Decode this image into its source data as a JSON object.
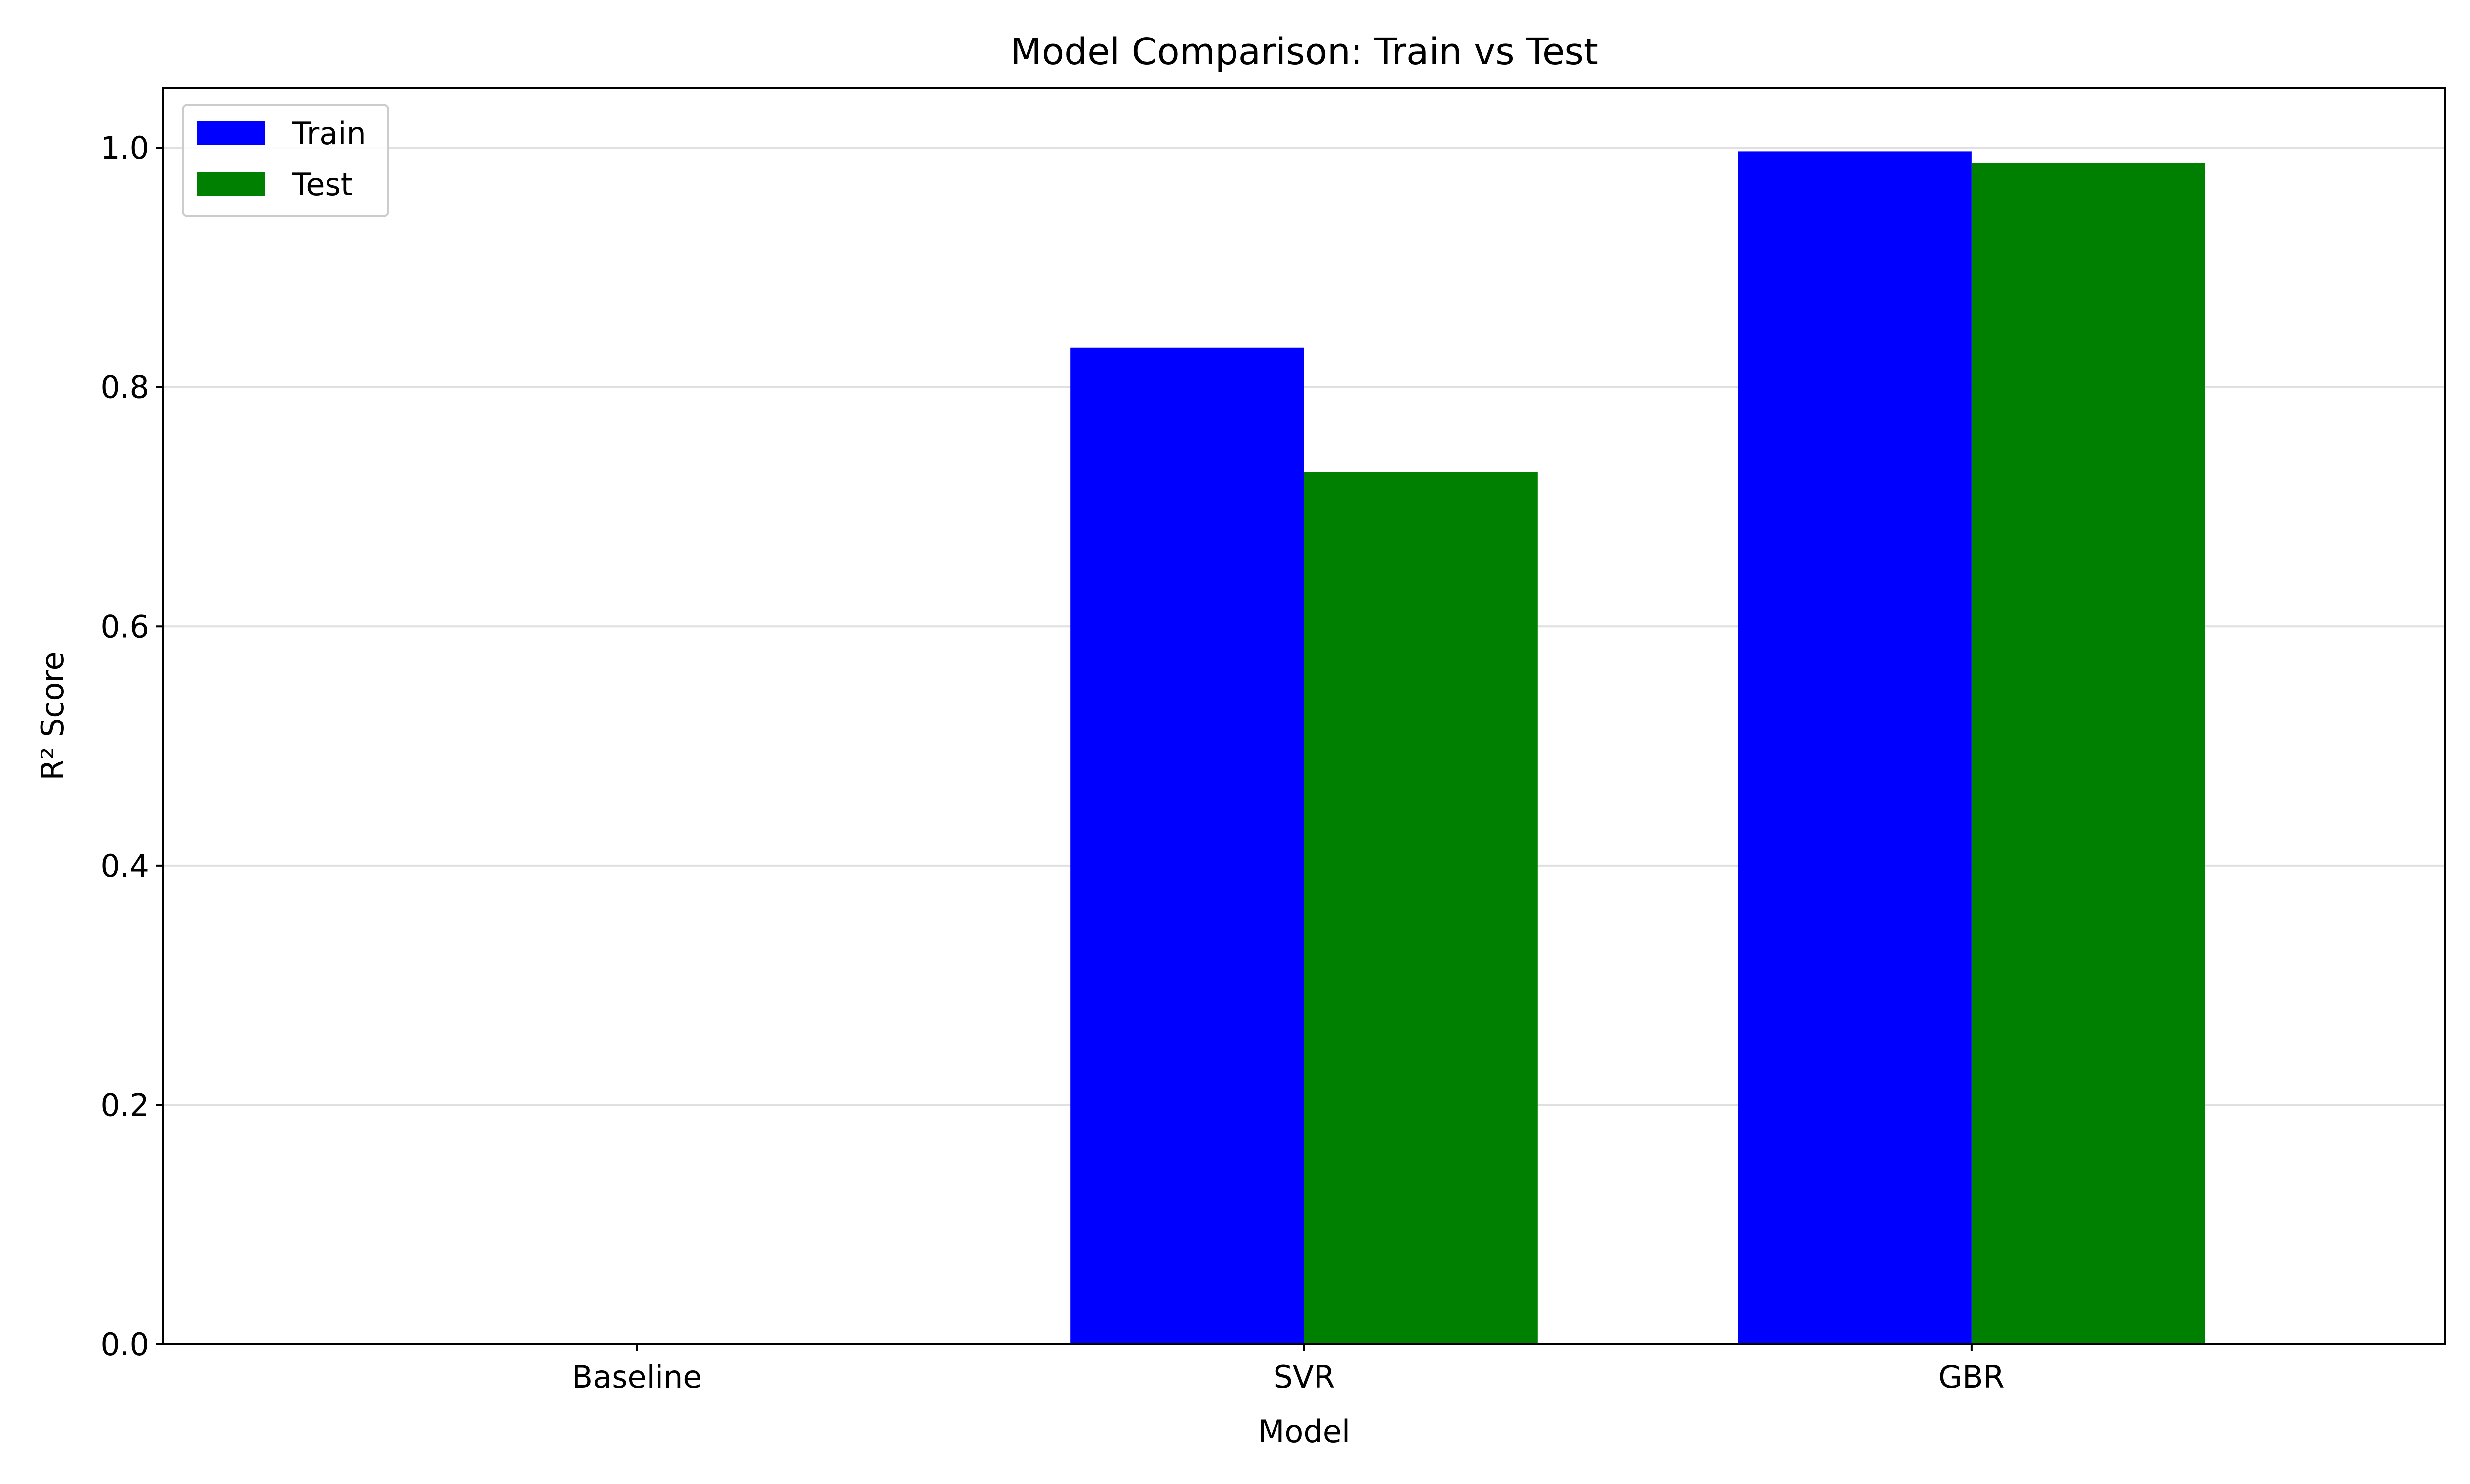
{
  "chart_data": {
    "type": "bar",
    "title": "Model Comparison: Train vs Test",
    "xlabel": "Model",
    "ylabel": "R² Score",
    "categories": [
      "Baseline",
      "SVR",
      "GBR"
    ],
    "series": [
      {
        "name": "Train",
        "color": "#0000ff",
        "values": [
          0.0,
          0.833,
          0.997
        ]
      },
      {
        "name": "Test",
        "color": "#008000",
        "values": [
          0.0,
          0.729,
          0.987
        ]
      }
    ],
    "ylim": [
      0.0,
      1.05
    ],
    "yticks": [
      "0.0",
      "0.2",
      "0.4",
      "0.6",
      "0.8",
      "1.0"
    ],
    "grid": "y",
    "legend_position": "top-left"
  }
}
